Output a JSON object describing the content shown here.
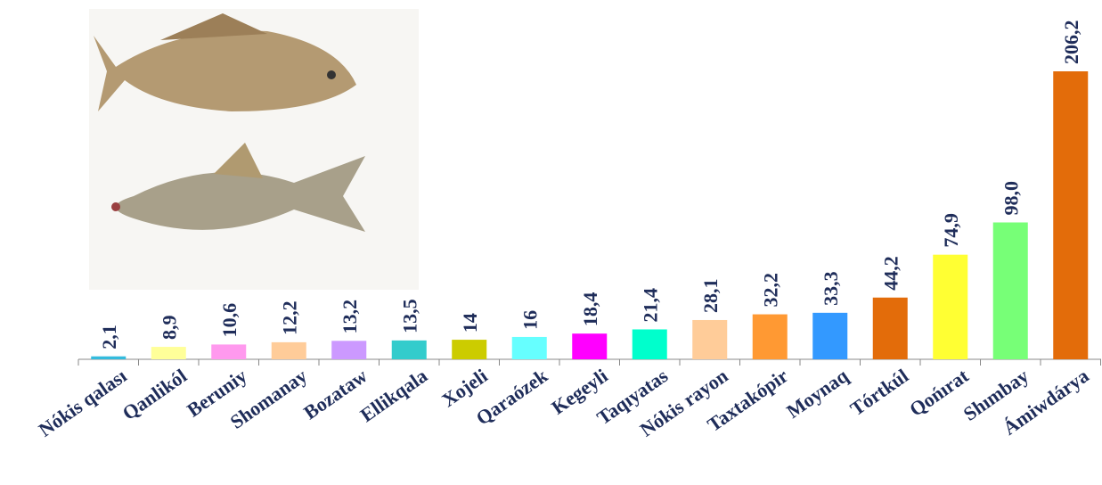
{
  "chart_data": {
    "type": "bar",
    "categories": [
      "Nókis qalası",
      "Qanlikól",
      "Beruniy",
      "Shomanay",
      "Bozataw",
      "Ellikqala",
      "Xojeli",
      "Qaraózek",
      "Kegeyli",
      "Taqıyatas",
      "Nókis rayon",
      "Taxtakópir",
      "Moynaq",
      "Tórtkúl",
      "Qońırat",
      "Shımbay",
      "Ámiwdárya"
    ],
    "values": [
      2.1,
      8.9,
      10.6,
      12.2,
      13.2,
      13.5,
      14,
      16,
      18.4,
      21.4,
      28.1,
      32.2,
      33.3,
      44.2,
      74.9,
      98.0,
      206.2
    ],
    "value_labels": [
      "2,1",
      "8,9",
      "10,6",
      "12,2",
      "13,2",
      "13,5",
      "14",
      "16",
      "18,4",
      "21,4",
      "28,1",
      "32,2",
      "33,3",
      "44,2",
      "74,9",
      "98,0",
      "206,2"
    ],
    "colors": [
      "#33bbdd",
      "#ffff99",
      "#ff99ee",
      "#ffcc99",
      "#cc99ff",
      "#33cccc",
      "#cccc00",
      "#66ffff",
      "#ff00ff",
      "#00ffcc",
      "#ffcc99",
      "#ff9933",
      "#3399ff",
      "#e36c0a",
      "#ffff33",
      "#77ff77",
      "#e36c0a"
    ]
  }
}
